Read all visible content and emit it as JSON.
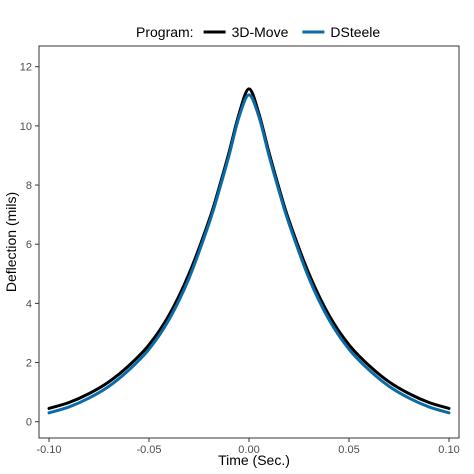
{
  "chart_data": {
    "type": "line",
    "xlabel": "Time (Sec.)",
    "ylabel": "Deflection (mils)",
    "xlim": [
      -0.1,
      0.1
    ],
    "ylim": [
      0,
      12
    ],
    "x_ticks": [
      -0.1,
      -0.05,
      0.0,
      0.05,
      0.1
    ],
    "x_tick_labels": [
      "-0.10",
      "-0.05",
      "0.00",
      "0.05",
      "0.10"
    ],
    "y_ticks": [
      0,
      2,
      4,
      6,
      8,
      10,
      12
    ],
    "y_tick_labels": [
      "0",
      "2",
      "4",
      "6",
      "8",
      "10",
      "12"
    ],
    "grid": false,
    "legend": {
      "title": "Program:",
      "placement": "top"
    },
    "series": [
      {
        "name": "3D-Move",
        "color": "#000000",
        "x": [
          -0.1,
          -0.09,
          -0.08,
          -0.07,
          -0.06,
          -0.05,
          -0.04,
          -0.03,
          -0.02,
          -0.015,
          -0.01,
          -0.005,
          0.0,
          0.005,
          0.01,
          0.015,
          0.02,
          0.03,
          0.04,
          0.05,
          0.06,
          0.07,
          0.08,
          0.09,
          0.1
        ],
        "y": [
          0.45,
          0.65,
          0.95,
          1.35,
          1.9,
          2.6,
          3.6,
          5.0,
          6.8,
          7.9,
          9.1,
          10.4,
          11.25,
          10.4,
          9.1,
          7.9,
          6.8,
          5.0,
          3.6,
          2.6,
          1.9,
          1.35,
          0.95,
          0.65,
          0.45
        ]
      },
      {
        "name": "DSteele",
        "color": "#0a6ba6",
        "x": [
          -0.1,
          -0.09,
          -0.08,
          -0.07,
          -0.06,
          -0.05,
          -0.04,
          -0.03,
          -0.02,
          -0.015,
          -0.01,
          -0.005,
          0.0,
          0.005,
          0.01,
          0.015,
          0.02,
          0.03,
          0.04,
          0.05,
          0.06,
          0.07,
          0.08,
          0.09,
          0.1
        ],
        "y": [
          0.3,
          0.5,
          0.8,
          1.2,
          1.75,
          2.45,
          3.45,
          4.85,
          6.7,
          7.8,
          9.0,
          10.3,
          11.05,
          10.3,
          9.0,
          7.8,
          6.7,
          4.85,
          3.45,
          2.45,
          1.75,
          1.2,
          0.8,
          0.5,
          0.3
        ]
      }
    ]
  }
}
